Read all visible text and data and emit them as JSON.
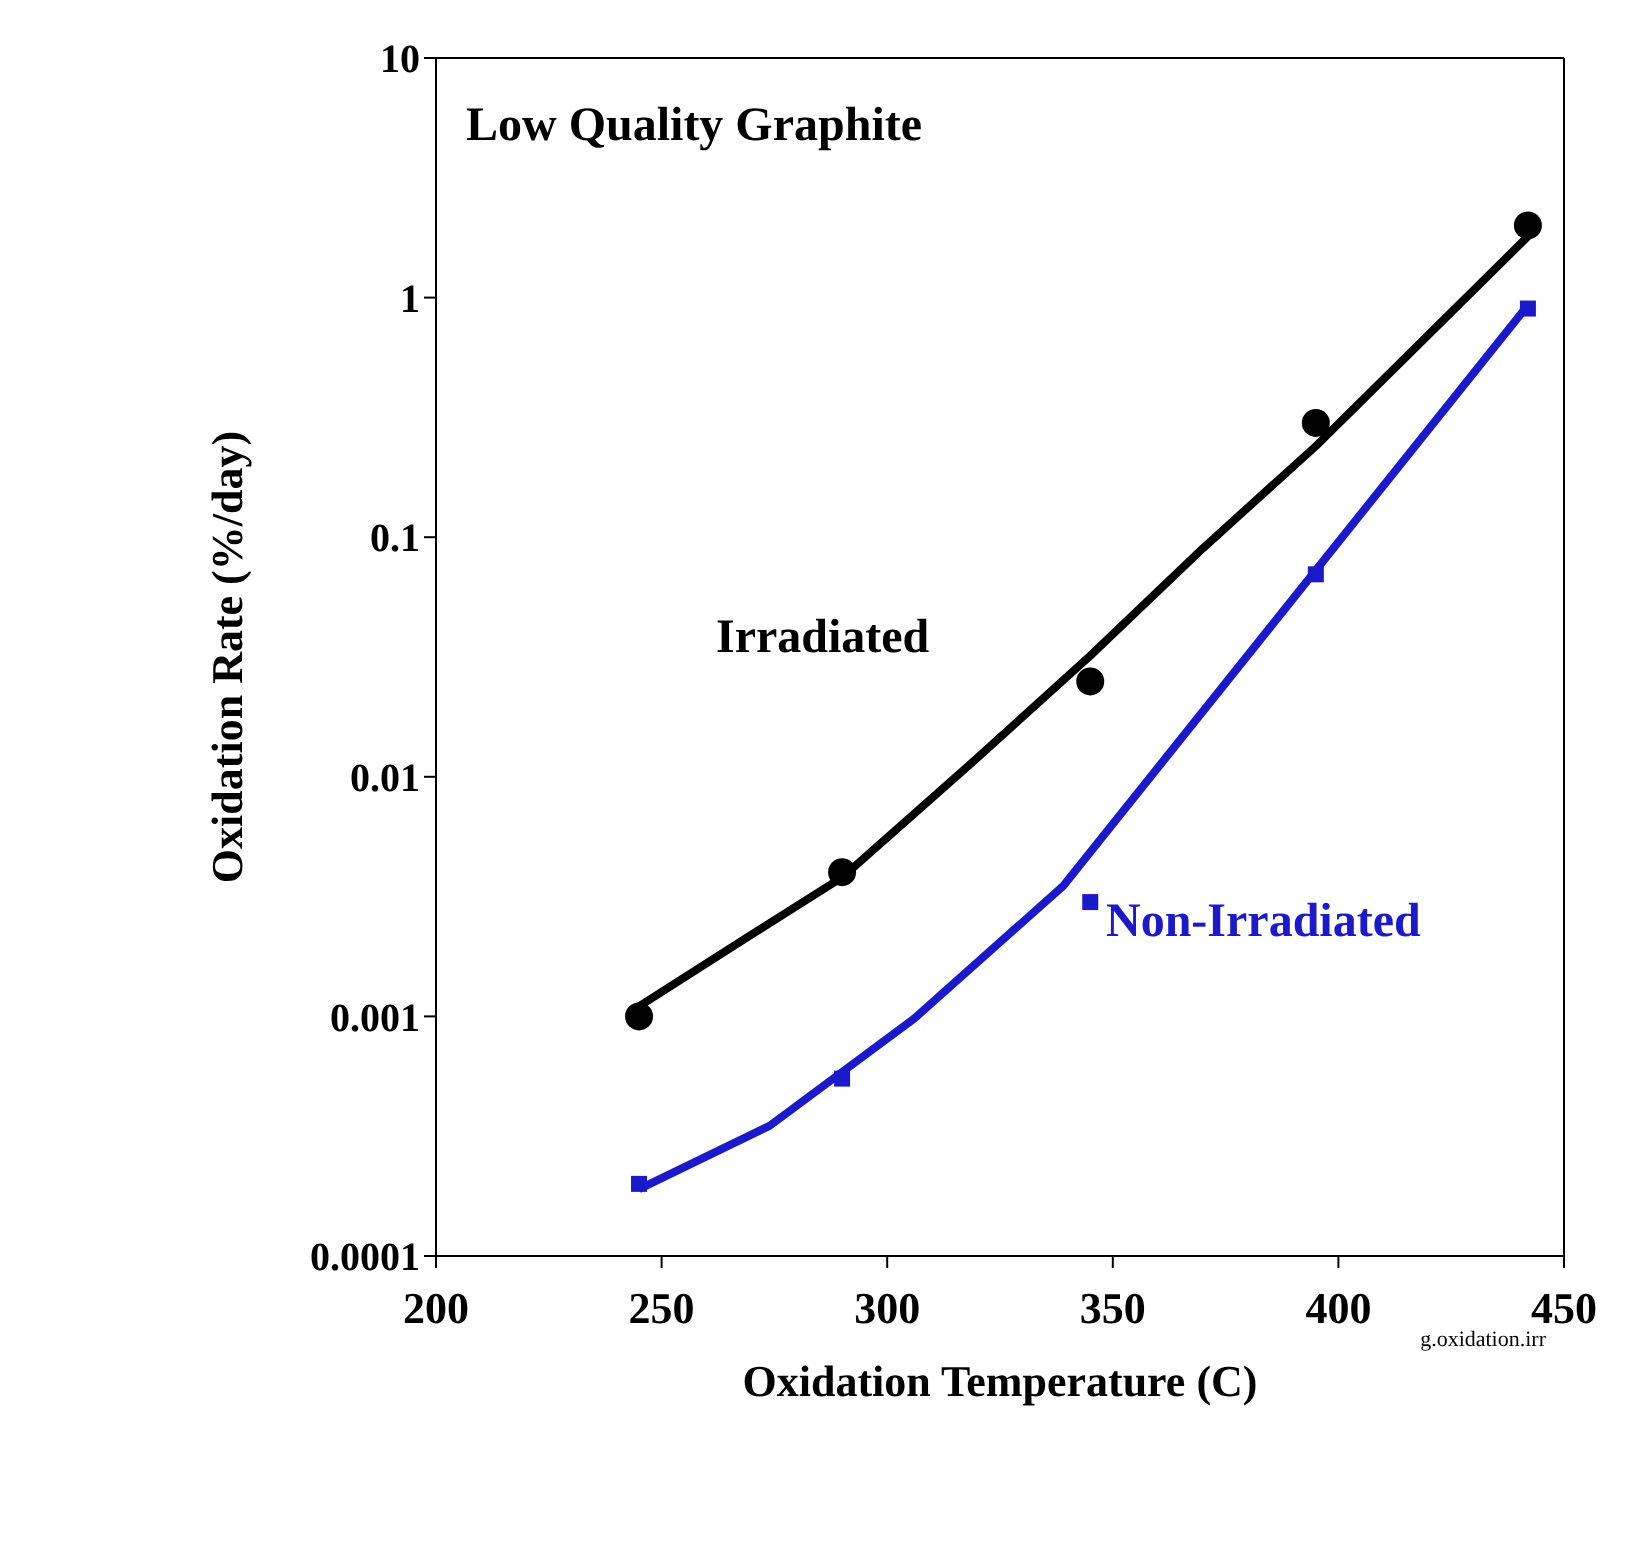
{
  "chart_data": {
    "type": "scatter",
    "xlabel": "Oxidation Temperature (C)",
    "ylabel": "Oxidation Rate (%/day)",
    "xlim": [
      200,
      450
    ],
    "xticks": [
      200,
      250,
      300,
      350,
      400,
      450
    ],
    "ylim": [
      0.0001,
      10
    ],
    "yticks": [
      0.0001,
      0.001,
      0.01,
      0.1,
      1,
      10
    ],
    "log": true,
    "series": [
      {
        "marker": "circle",
        "color": "#000000",
        "x": [
          245,
          290,
          345,
          395,
          442
        ],
        "values": [
          0.001,
          0.004,
          0.025,
          0.3,
          2
        ]
      },
      {
        "type": "line",
        "marker": "none",
        "color": "#000000",
        "x": [
          245,
          270,
          290,
          320,
          345,
          370,
          395,
          420,
          442
        ],
        "values": [
          0.0011,
          0.0022,
          0.0038,
          0.012,
          0.032,
          0.09,
          0.24,
          0.7,
          1.8
        ]
      },
      {
        "marker": "square",
        "color": "#1a1acc",
        "x": [
          245,
          290,
          345,
          395,
          442
        ],
        "values": [
          0.0002,
          0.00055,
          0.003,
          0.07,
          0.9
        ]
      },
      {
        "type": "line",
        "marker": "none",
        "color": "#1a1acc",
        "x": [
          245,
          274,
          306,
          339,
          442
        ],
        "values": [
          0.00019,
          0.00035,
          0.00098,
          0.0035,
          0.93
        ]
      }
    ],
    "annotations": [
      "Low Quality Graphite",
      "Irradiated",
      "Non-Irradiated",
      "g.oxidation.irr"
    ]
  }
}
